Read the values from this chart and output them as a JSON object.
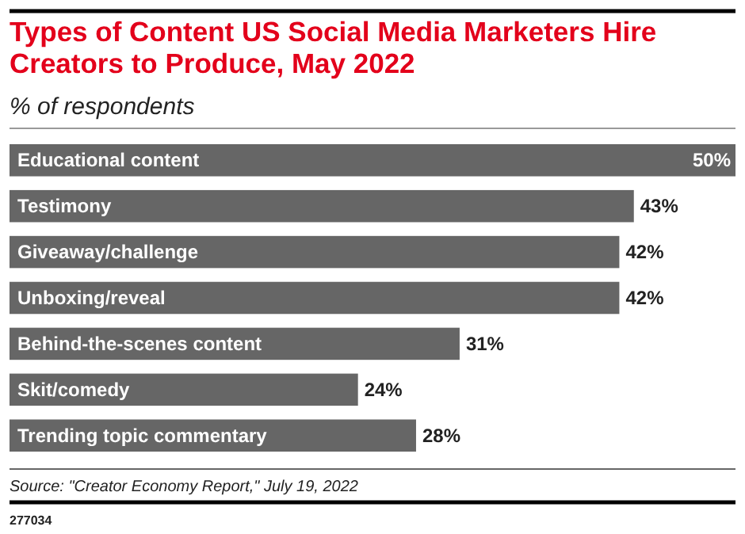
{
  "chart_data": {
    "type": "bar",
    "orientation": "horizontal",
    "title": "Types of Content US Social Media Marketers Hire Creators to Produce, May 2022",
    "subtitle": "% of respondents",
    "categories": [
      "Educational content",
      "Testimony",
      "Giveaway/challenge",
      "Unboxing/reveal",
      "Behind-the-scenes content",
      "Skit/comedy",
      "Trending topic commentary"
    ],
    "values": [
      50,
      43,
      42,
      42,
      31,
      24,
      28
    ],
    "value_labels": [
      "50%",
      "43%",
      "42%",
      "42%",
      "31%",
      "24%",
      "28%"
    ],
    "color": "#666666",
    "annotations": [
      "Source: \"Creator Economy Report,\" July 19, 2022",
      "277034"
    ]
  }
}
